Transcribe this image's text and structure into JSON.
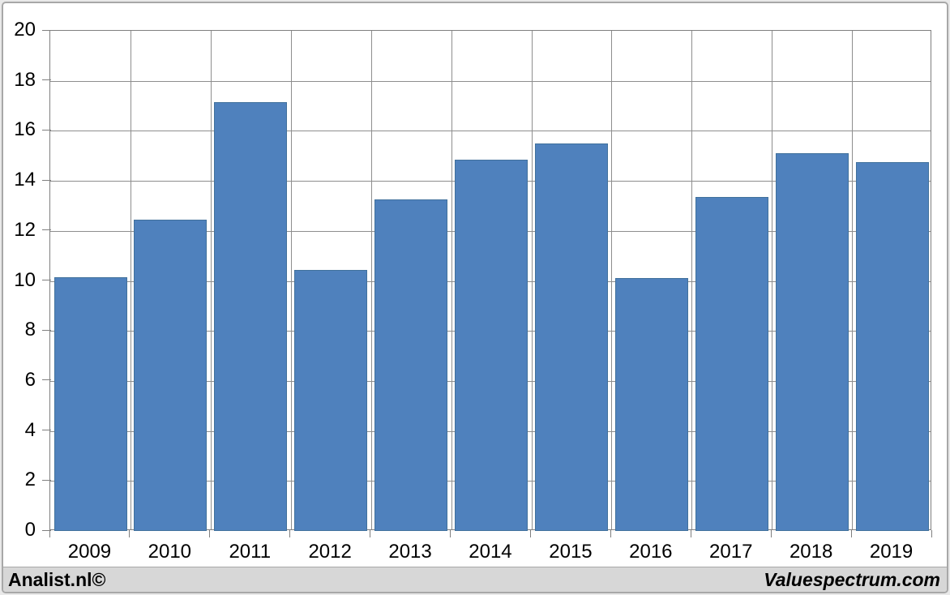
{
  "chart_data": {
    "type": "bar",
    "title": "",
    "xlabel": "",
    "ylabel": "",
    "categories": [
      "2009",
      "2010",
      "2011",
      "2012",
      "2013",
      "2014",
      "2015",
      "2016",
      "2017",
      "2018",
      "2019"
    ],
    "values": [
      10.15,
      12.45,
      17.15,
      10.45,
      13.25,
      14.85,
      15.5,
      10.1,
      13.35,
      15.1,
      14.75
    ],
    "ylim": [
      0,
      20
    ],
    "ytick_step": 2,
    "yticks": [
      0,
      2,
      4,
      6,
      8,
      10,
      12,
      14,
      16,
      18,
      20
    ],
    "grid": true,
    "legend": "none",
    "bar_color": "#4F81BD",
    "bar_border_color": "#41719C",
    "gridline_color": "#8E8E8E",
    "axis_color": "#7F7F7F"
  },
  "footer": {
    "left_text": "Analist.nl©",
    "right_text": "Valuespectrum.com",
    "background": "#D7D7D7"
  },
  "frame": {
    "background": "#FFFFFF",
    "border_color": "#A8A8A8"
  }
}
